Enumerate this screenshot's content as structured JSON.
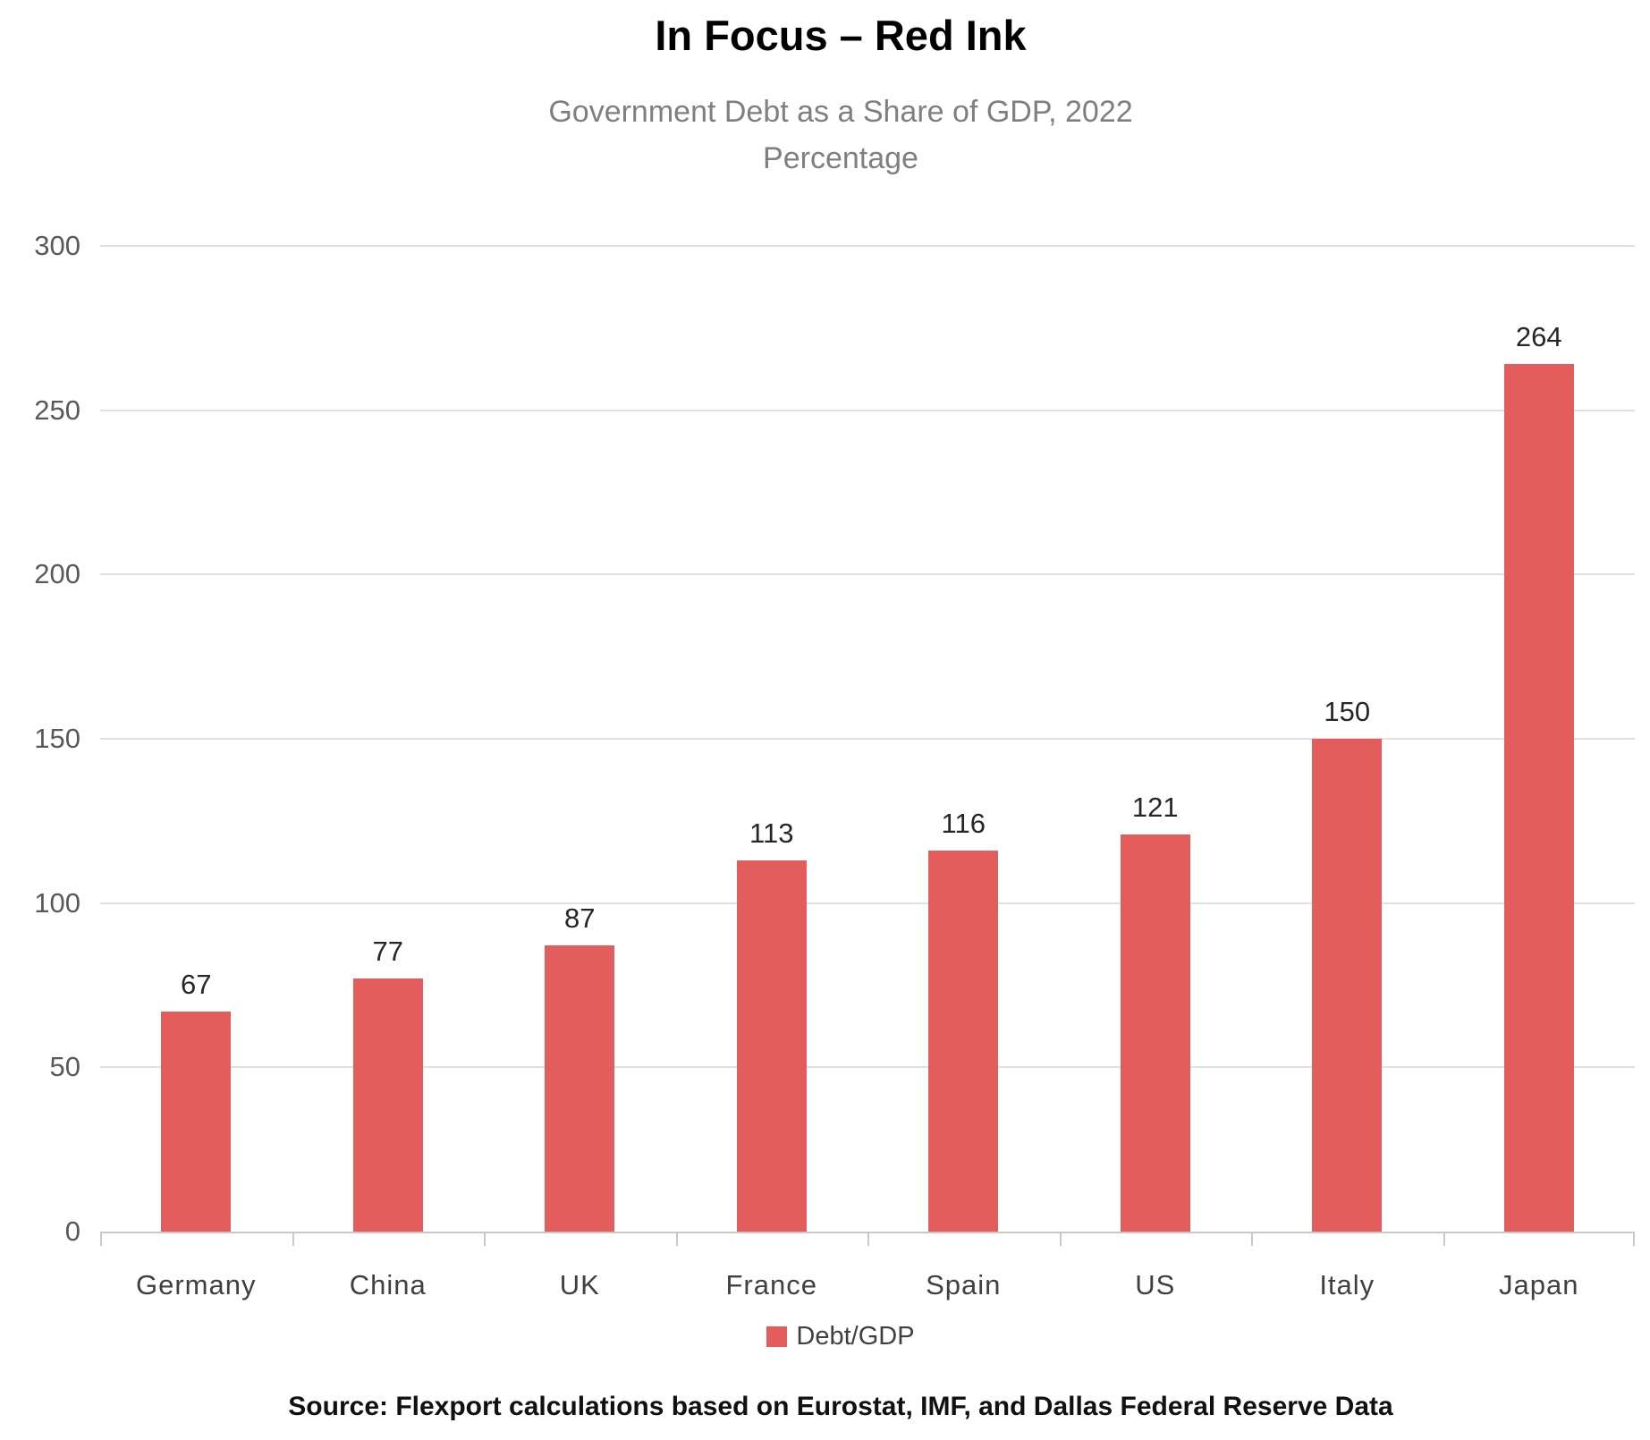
{
  "header": {
    "title": "In Focus – Red Ink",
    "subtitle_line1": "Government Debt as a Share of GDP, 2022",
    "subtitle_line2": "Percentage"
  },
  "chart_data": {
    "type": "bar",
    "title": "In Focus – Red Ink",
    "subtitle": "Government Debt as a Share of GDP, 2022",
    "unit": "Percentage",
    "categories": [
      "Germany",
      "China",
      "UK",
      "France",
      "Spain",
      "US",
      "Italy",
      "Japan"
    ],
    "values": [
      67,
      77,
      87,
      113,
      116,
      121,
      150,
      264
    ],
    "series_name": "Debt/GDP",
    "ylim": [
      0,
      300
    ],
    "yticks": [
      0,
      50,
      100,
      150,
      200,
      250,
      300
    ],
    "grid": true,
    "value_labels_shown": true,
    "legend_position": "bottom",
    "bar_color": "#e35d5d"
  },
  "legend": {
    "label": "Debt/GDP",
    "swatch_color": "#e35d5d"
  },
  "footer": {
    "source": "Source: Flexport calculations based on Eurostat, IMF, and Dallas Federal Reserve Data"
  },
  "colors": {
    "bar": "#e35d5d",
    "gridline": "#e0e0e0",
    "axis_line": "#c9c9c9",
    "title": "#000000",
    "subtitle": "#7f7f7f",
    "y_tick_label": "#595959",
    "category_label": "#404040",
    "value_label": "#262626",
    "source": "#111111"
  }
}
